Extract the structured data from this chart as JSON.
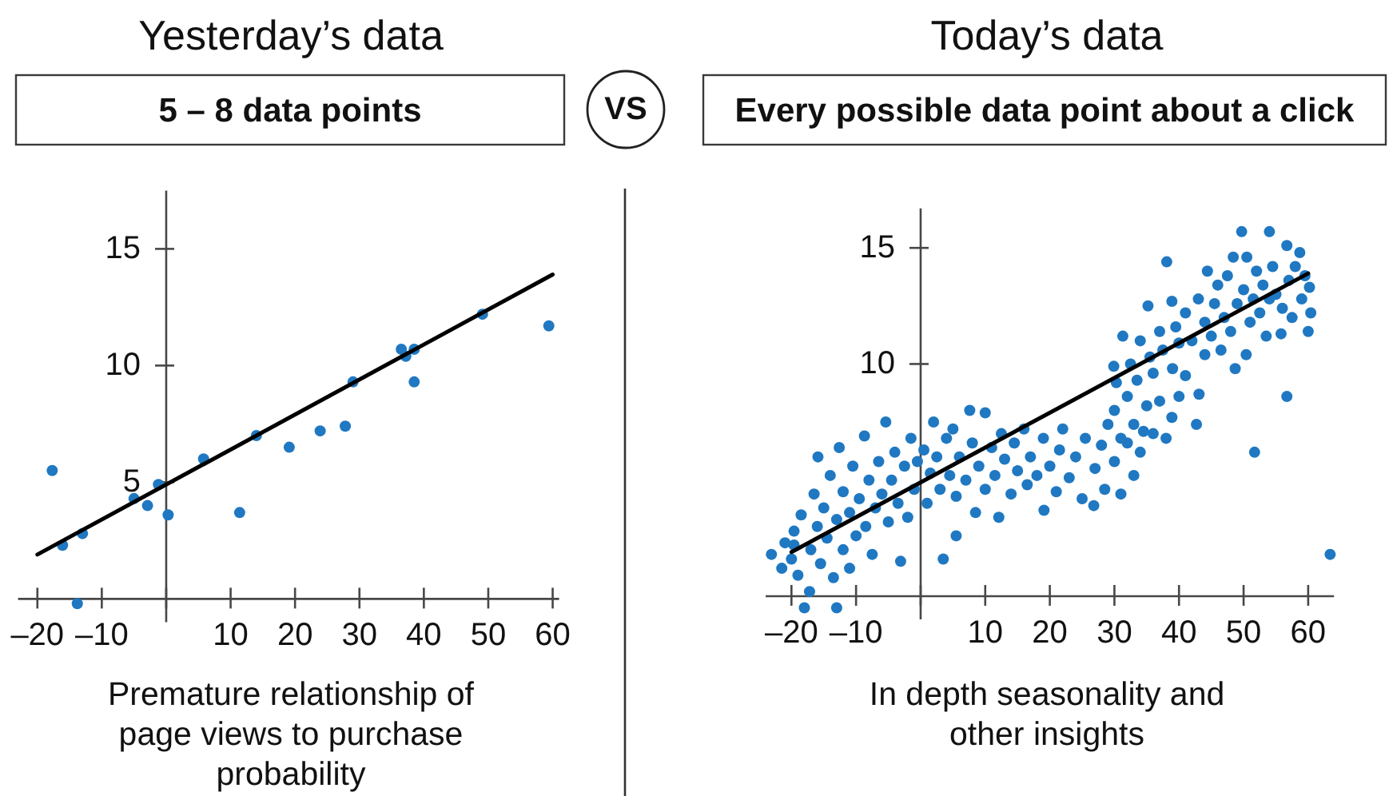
{
  "chart_data": [
    {
      "type": "scatter",
      "title": "Yesterday’s data",
      "subtitle": "5 – 8 data points",
      "xlabel": "Premature relationship of page views to purchase probability",
      "annotations": [
        "VS"
      ],
      "xlim": [
        -23,
        61
      ],
      "ylim": [
        -1,
        17.5
      ],
      "xticks": [
        {
          "value": -20,
          "label": "–20"
        },
        {
          "value": -10,
          "label": "–10"
        },
        {
          "value": 0,
          "label": null
        },
        10,
        20,
        30,
        40,
        50,
        60
      ],
      "yticks": [
        5,
        10,
        15
      ],
      "series": [
        {
          "type": "scatter",
          "marker": "circle",
          "color": "#1f78c1",
          "x": [
            -17.7,
            -16.1,
            -13.0,
            -13.8,
            -5.0,
            -2.9,
            -1.2,
            0.3,
            5.8,
            11.4,
            14.0,
            19.1,
            23.9,
            27.8,
            29.0,
            36.5,
            37.2,
            38.5,
            38.5,
            49.1,
            59.4
          ],
          "values": [
            5.5,
            2.3,
            2.8,
            -0.2,
            4.3,
            4.0,
            4.9,
            3.6,
            6.0,
            3.7,
            7.0,
            6.5,
            7.2,
            7.4,
            9.3,
            10.7,
            10.4,
            10.7,
            9.3,
            12.2,
            11.7
          ]
        },
        {
          "type": "line",
          "color": "#000000",
          "x": [
            -20,
            60
          ],
          "values": [
            1.9,
            13.9
          ]
        }
      ]
    },
    {
      "type": "scatter",
      "title": "Today’s data",
      "subtitle": "Every possible data point about a click",
      "xlabel": "In depth seasonality and other insights",
      "xlim": [
        -24,
        64
      ],
      "ylim": [
        -1,
        16.7
      ],
      "xticks": [
        {
          "value": -20,
          "label": "–20"
        },
        {
          "value": -10,
          "label": "–10"
        },
        {
          "value": 0,
          "label": null
        },
        10,
        20,
        30,
        40,
        50,
        60
      ],
      "yticks": [
        10,
        15
      ],
      "series": [
        {
          "type": "scatter",
          "marker": "circle",
          "color": "#1f78c1",
          "x": [
            -23.1,
            -21.5,
            -21,
            -20,
            -19.6,
            -19.6,
            -19,
            -18.5,
            -18,
            -17.2,
            -17,
            -16.5,
            -16,
            -15.9,
            -15.5,
            -15,
            -14.5,
            -14,
            -13.5,
            -13,
            -13,
            -12.6,
            -12,
            -12,
            -11,
            -11,
            -10.5,
            -10,
            -9.5,
            -8.7,
            -8.5,
            -8,
            -7.5,
            -7,
            -6.5,
            -6,
            -5.4,
            -5,
            -4.5,
            -4,
            -3.5,
            -3.1,
            -2.5,
            -2,
            -1.5,
            -1,
            -0.5,
            0.5,
            1,
            1.5,
            2,
            2.5,
            3,
            3.5,
            4,
            4.5,
            5,
            5.5,
            5.5,
            6,
            7,
            7.6,
            8,
            8.5,
            9,
            10,
            10,
            11,
            11.5,
            12.1,
            12.5,
            13,
            14,
            14.5,
            15,
            16,
            16.5,
            17,
            18,
            19.1,
            19,
            20,
            21,
            21.5,
            22,
            23,
            24,
            25,
            25.5,
            26.8,
            27,
            28,
            28.5,
            29,
            30,
            31,
            32,
            33,
            30,
            30.3,
            29.9,
            31.3,
            31,
            32,
            32.5,
            33,
            33.5,
            34,
            34,
            35,
            35.2,
            35.5,
            36,
            36,
            37,
            37,
            37.5,
            38.1,
            38,
            38.9,
            38.9,
            39,
            39.5,
            40,
            40,
            41,
            41,
            42,
            34.5,
            42.7,
            43.1,
            43,
            44,
            44,
            44.4,
            45,
            45.5,
            46,
            46.5,
            47,
            47.5,
            48,
            48.4,
            48.7,
            49,
            49.7,
            50,
            50.4,
            50.5,
            51,
            51.5,
            52,
            52.5,
            53,
            53.5,
            54,
            54,
            54.5,
            55,
            55.8,
            56,
            56.7,
            56.7,
            57,
            57.5,
            58,
            58.7,
            59,
            59.5,
            60,
            60.2,
            60.4,
            51.7,
            63.4
          ],
          "values": [
            1.8,
            1.2,
            2.3,
            1.6,
            2.2,
            2.8,
            0.9,
            3.5,
            -0.5,
            0.2,
            2.0,
            4.4,
            3.0,
            6.0,
            1.4,
            3.8,
            2.5,
            5.2,
            0.8,
            -0.5,
            3.3,
            6.4,
            2.0,
            4.5,
            1.2,
            3.6,
            5.6,
            2.6,
            4.2,
            6.9,
            3.0,
            5.0,
            1.8,
            3.8,
            5.8,
            4.4,
            7.5,
            3.2,
            5.0,
            6.2,
            4.0,
            1.5,
            5.6,
            3.4,
            6.8,
            4.6,
            5.8,
            6.3,
            4.0,
            5.3,
            7.5,
            6.0,
            4.6,
            1.6,
            6.8,
            5.2,
            7.2,
            2.6,
            4.3,
            6.0,
            5.0,
            8.0,
            6.6,
            3.6,
            5.6,
            7.9,
            4.6,
            6.4,
            5.2,
            3.4,
            7.0,
            5.9,
            4.4,
            6.6,
            5.4,
            7.2,
            4.8,
            6.0,
            5.2,
            3.7,
            6.8,
            5.6,
            4.5,
            6.3,
            7.2,
            5.1,
            6.0,
            4.2,
            6.8,
            3.9,
            5.5,
            6.5,
            4.6,
            7.4,
            5.8,
            4.4,
            6.6,
            5.2,
            8.0,
            9.2,
            9.9,
            11.2,
            6.8,
            8.6,
            10.0,
            7.4,
            9.3,
            6.2,
            11.0,
            8.2,
            12.5,
            10.3,
            7.0,
            9.6,
            11.4,
            8.4,
            10.6,
            14.4,
            6.8,
            12.7,
            7.7,
            9.8,
            11.6,
            8.6,
            10.9,
            12.2,
            9.5,
            11.0,
            7.1,
            7.4,
            8.7,
            12.8,
            10.4,
            11.8,
            14.0,
            11.2,
            12.6,
            13.4,
            10.6,
            12.0,
            13.8,
            11.4,
            14.6,
            9.8,
            12.6,
            15.7,
            13.2,
            10.4,
            14.6,
            11.8,
            12.8,
            14.0,
            12.2,
            13.4,
            11.2,
            15.7,
            12.8,
            14.2,
            13.0,
            11.3,
            12.4,
            15.1,
            8.6,
            13.6,
            12.0,
            14.2,
            14.8,
            12.8,
            13.8,
            11.4,
            13.3,
            12.2,
            6.2,
            1.8
          ]
        },
        {
          "type": "line",
          "color": "#000000",
          "x": [
            -20,
            60
          ],
          "values": [
            1.9,
            13.9
          ]
        }
      ]
    }
  ]
}
